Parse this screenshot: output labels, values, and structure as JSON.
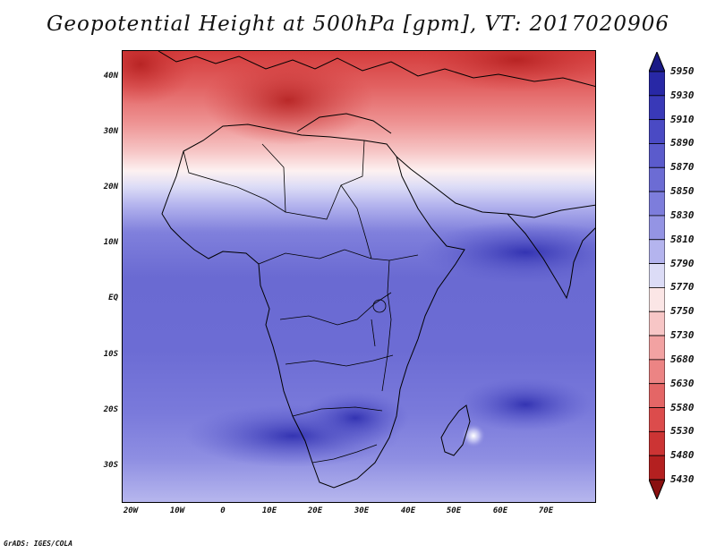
{
  "title": "Geopotential Height at 500hPa [gpm], VT: 2017020906",
  "credit": "GrADS: IGES/COLA",
  "map": {
    "variable": "Geopotential Height",
    "level": "500hPa",
    "units": "gpm",
    "valid_time": "2017020906",
    "lon_range": [
      -23,
      80
    ],
    "lat_range": [
      -37,
      45
    ],
    "lat_ticks": [
      "40N",
      "30N",
      "20N",
      "10N",
      "EQ",
      "10S",
      "20S",
      "30S"
    ],
    "lon_ticks": [
      "20W",
      "10W",
      "0",
      "10E",
      "20E",
      "30E",
      "40E",
      "50E",
      "60E",
      "70E"
    ]
  },
  "colorbar": {
    "levels": [
      "5950",
      "5930",
      "5910",
      "5890",
      "5870",
      "5850",
      "5830",
      "5810",
      "5790",
      "5770",
      "5750",
      "5730",
      "5680",
      "5630",
      "5580",
      "5530",
      "5480",
      "5430"
    ],
    "colors_top_to_bottom": [
      "#1a1a86",
      "#2828a6",
      "#3939b8",
      "#4a4ac4",
      "#5b5bcc",
      "#6c6cd4",
      "#7d7ddc",
      "#9494e4",
      "#b4b4ee",
      "#dcdcf6",
      "#fbe6e6",
      "#f7c6c6",
      "#f2a2a2",
      "#ec8484",
      "#e46666",
      "#dc4c4c",
      "#cc3434",
      "#b42020",
      "#8a1010"
    ]
  }
}
